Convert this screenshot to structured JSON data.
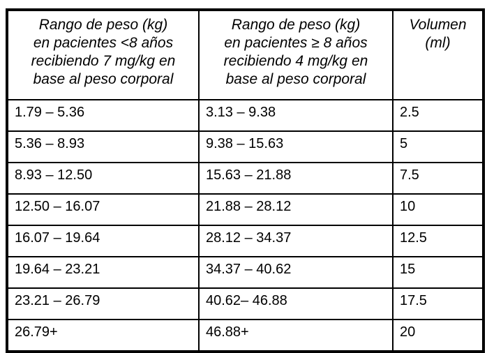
{
  "table": {
    "title_semantic": "pediatric-weight-dose-volume-table",
    "headers": [
      "Rango de peso (kg)\nen pacientes <8 años\nrecibiendo 7 mg/kg en\nbase al peso corporal",
      "Rango de peso (kg)\nen pacientes ≥ 8 años\nrecibiendo 4 mg/kg en\nbase al peso corporal",
      "Volumen\n(ml)"
    ],
    "rows": [
      [
        "1.79 – 5.36",
        "3.13 – 9.38",
        "2.5"
      ],
      [
        "5.36 – 8.93",
        "9.38 – 15.63",
        "5"
      ],
      [
        "8.93 – 12.50",
        "15.63 – 21.88",
        "7.5"
      ],
      [
        "12.50 – 16.07",
        "21.88 – 28.12",
        "10"
      ],
      [
        "16.07 – 19.64",
        "28.12 – 34.37",
        "12.5"
      ],
      [
        "19.64 – 23.21",
        "34.37 – 40.62",
        "15"
      ],
      [
        "23.21 – 26.79",
        "40.62– 46.88",
        "17.5"
      ],
      [
        "26.79+",
        "46.88+",
        "20"
      ]
    ],
    "colors": {
      "border": "#000000",
      "text": "#000000",
      "background": "#ffffff"
    }
  }
}
